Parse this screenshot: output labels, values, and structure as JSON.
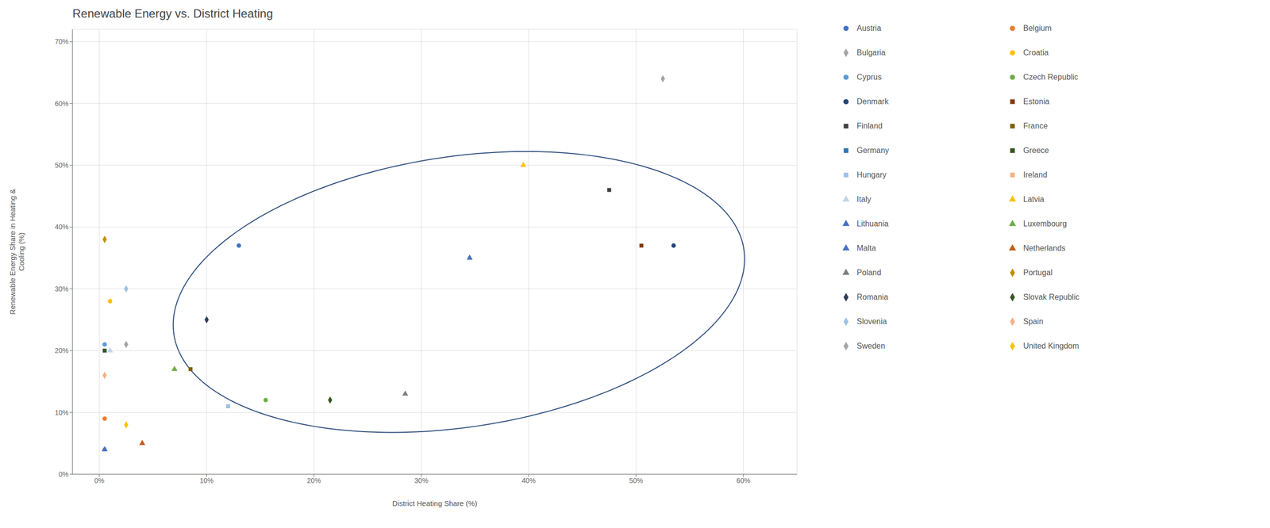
{
  "chart_data": {
    "type": "scatter",
    "title": "Renewable Energy vs. District Heating",
    "x_label": "District Heating Share (%)",
    "y_label": "Renewable Energy Share in Heating &\nCooling (%)",
    "series": [
      {
        "name": "Austria",
        "color": "#4472C4",
        "marker": "circle",
        "x": [
          0.13
        ],
        "values": [
          0.37
        ]
      },
      {
        "name": "Belgium",
        "color": "#ED7D31",
        "marker": "circle",
        "x": [
          0.005
        ],
        "values": [
          0.09
        ]
      },
      {
        "name": "Bulgaria",
        "color": "#A5A5A5",
        "marker": "diamond",
        "x": [
          0.025
        ],
        "values": [
          0.21
        ]
      },
      {
        "name": "Croatia",
        "color": "#FFC000",
        "marker": "circle",
        "x": [
          0.01
        ],
        "values": [
          0.28
        ]
      },
      {
        "name": "Cyprus",
        "color": "#5B9BD5",
        "marker": "circle",
        "x": [
          0.005
        ],
        "values": [
          0.21
        ]
      },
      {
        "name": "Czech Republic",
        "color": "#70AD47",
        "marker": "circle",
        "x": [
          0.155
        ],
        "values": [
          0.12
        ]
      },
      {
        "name": "Denmark",
        "color": "#264478",
        "marker": "circle",
        "x": [
          0.535
        ],
        "values": [
          0.37
        ]
      },
      {
        "name": "Estonia",
        "color": "#843C0C",
        "marker": "square",
        "x": [
          0.505
        ],
        "values": [
          0.37
        ]
      },
      {
        "name": "Finland",
        "color": "#404040",
        "marker": "square",
        "x": [
          0.475
        ],
        "values": [
          0.46
        ]
      },
      {
        "name": "France",
        "color": "#7F6000",
        "marker": "square",
        "x": [
          0.085
        ],
        "values": [
          0.17
        ]
      },
      {
        "name": "Germany",
        "color": "#2E75B6",
        "marker": "square",
        "x": [
          0.12
        ],
        "values": [
          0.11
        ]
      },
      {
        "name": "Greece",
        "color": "#375623",
        "marker": "square",
        "x": [
          0.005
        ],
        "values": [
          0.2
        ]
      },
      {
        "name": "Hungary",
        "color": "#9DC3E6",
        "marker": "square",
        "x": [
          0.12
        ],
        "values": [
          0.11
        ]
      },
      {
        "name": "Ireland",
        "color": "#F4B183",
        "marker": "square",
        "x": [
          0.005
        ],
        "values": [
          0.04
        ]
      },
      {
        "name": "Italy",
        "color": "#BDD7EE",
        "marker": "triangle",
        "x": [
          0.01
        ],
        "values": [
          0.2
        ]
      },
      {
        "name": "Latvia",
        "color": "#FFC000",
        "marker": "triangle",
        "x": [
          0.395
        ],
        "values": [
          0.5
        ]
      },
      {
        "name": "Lithuania",
        "color": "#4472C4",
        "marker": "triangle",
        "x": [
          0.345
        ],
        "values": [
          0.35
        ]
      },
      {
        "name": "Luxembourg",
        "color": "#70AD47",
        "marker": "triangle",
        "x": [
          0.07
        ],
        "values": [
          0.17
        ]
      },
      {
        "name": "Malta",
        "color": "#4472C4",
        "marker": "triangle",
        "x": [
          0.005
        ],
        "values": [
          0.04
        ]
      },
      {
        "name": "Netherlands",
        "color": "#C55A11",
        "marker": "triangle",
        "x": [
          0.04
        ],
        "values": [
          0.05
        ]
      },
      {
        "name": "Poland",
        "color": "#7F7F7F",
        "marker": "triangle",
        "x": [
          0.285
        ],
        "values": [
          0.13
        ]
      },
      {
        "name": "Portugal",
        "color": "#BF8F00",
        "marker": "diamond",
        "x": [
          0.005
        ],
        "values": [
          0.38
        ]
      },
      {
        "name": "Romania",
        "color": "#2E4057",
        "marker": "diamond",
        "x": [
          0.1
        ],
        "values": [
          0.25
        ]
      },
      {
        "name": "Slovak Republic",
        "color": "#375623",
        "marker": "diamond",
        "x": [
          0.215
        ],
        "values": [
          0.12
        ]
      },
      {
        "name": "Slovenia",
        "color": "#9DC3E6",
        "marker": "diamond",
        "x": [
          0.025
        ],
        "values": [
          0.3
        ]
      },
      {
        "name": "Spain",
        "color": "#F4B183",
        "marker": "diamond",
        "x": [
          0.005
        ],
        "values": [
          0.16
        ]
      },
      {
        "name": "Sweden",
        "color": "#A5A5A5",
        "marker": "diamond",
        "x": [
          0.525
        ],
        "values": [
          0.64
        ]
      },
      {
        "name": "United Kingdom",
        "color": "#FFC000",
        "marker": "diamond",
        "x": [
          0.025
        ],
        "values": [
          0.08
        ]
      }
    ],
    "ellipse": {
      "center_x": 0.335,
      "center_y": 0.295,
      "width": 0.56,
      "height": 0.42,
      "angle": 28,
      "color": "#2E4F7F"
    },
    "xlim": [
      -0.025,
      0.65
    ],
    "ylim": [
      0.0,
      0.72
    ],
    "xticks": [
      {
        "value": 0,
        "label": "0%"
      },
      {
        "value": 0.1,
        "label": "10%"
      },
      {
        "value": 0.2,
        "label": "20%"
      },
      {
        "value": 0.3,
        "label": "30%"
      },
      {
        "value": 0.4,
        "label": "40%"
      },
      {
        "value": 0.5,
        "label": "50%"
      },
      {
        "value": 0.6,
        "label": "60%"
      }
    ],
    "yticks": [
      {
        "value": 0,
        "label": "0%"
      },
      {
        "value": 0.1,
        "label": "10%"
      },
      {
        "value": 0.2,
        "label": "20%"
      },
      {
        "value": 0.3,
        "label": "30%"
      },
      {
        "value": 0.4,
        "label": "40%"
      },
      {
        "value": 0.5,
        "label": "50%"
      },
      {
        "value": 0.6,
        "label": "60%"
      },
      {
        "value": 0.7,
        "label": "70%"
      }
    ],
    "grid": true,
    "legend": "right"
  }
}
